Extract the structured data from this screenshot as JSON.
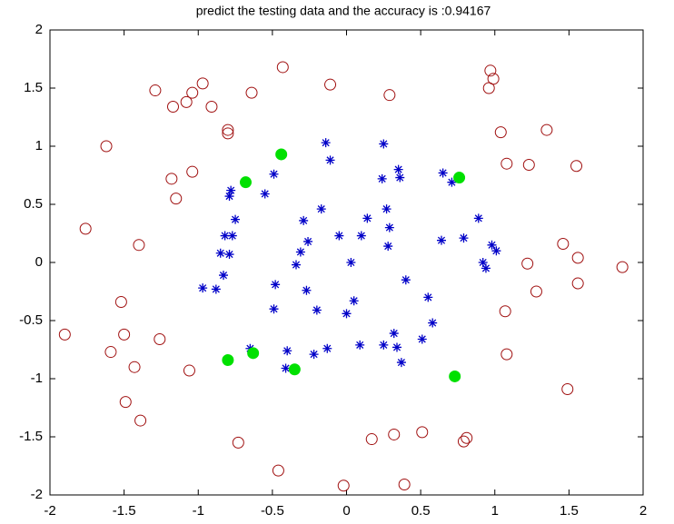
{
  "chart_data": {
    "type": "scatter",
    "title": "predict the testing data and the accuracy is :0.94167",
    "xlim": [
      -2,
      2
    ],
    "ylim": [
      -2,
      2
    ],
    "xticks": [
      -2,
      -1.5,
      -1,
      -0.5,
      0,
      0.5,
      1,
      1.5,
      2
    ],
    "yticks": [
      -2,
      -1.5,
      -1,
      -0.5,
      0,
      0.5,
      1,
      1.5,
      2
    ],
    "grid": false,
    "series": [
      {
        "color": "#a01010",
        "marker": "circle",
        "x": [
          -0.43,
          -1.29,
          -1.17,
          -1.08,
          -1.04,
          -0.97,
          -0.91,
          -0.8,
          -0.8,
          -0.64,
          -0.11,
          0.29,
          0.97,
          0.99,
          0.96,
          -1.62,
          -1.18,
          -1.15,
          -1.04,
          1.04,
          1.35,
          1.08,
          1.23,
          1.55,
          -1.76,
          -1.4,
          1.46,
          1.56,
          1.86,
          1.22,
          1.28,
          1.56,
          -1.52,
          -1.5,
          -1.9,
          -1.59,
          -1.26,
          -1.43,
          -1.06,
          1.07,
          1.08,
          1.49,
          -1.49,
          -1.39,
          -0.73,
          -0.46,
          -0.02,
          0.17,
          0.32,
          0.39,
          0.51,
          0.81,
          0.79
        ],
        "y": [
          1.68,
          1.48,
          1.34,
          1.38,
          1.46,
          1.54,
          1.34,
          1.14,
          1.11,
          1.46,
          1.53,
          1.44,
          1.65,
          1.58,
          1.5,
          1.0,
          0.72,
          0.55,
          0.78,
          1.12,
          1.14,
          0.85,
          0.84,
          0.83,
          0.29,
          0.15,
          0.16,
          0.04,
          -0.04,
          -0.01,
          -0.25,
          -0.18,
          -0.34,
          -0.62,
          -0.62,
          -0.77,
          -0.66,
          -0.9,
          -0.93,
          -0.42,
          -0.79,
          -1.09,
          -1.2,
          -1.36,
          -1.55,
          -1.79,
          -1.92,
          -1.52,
          -1.48,
          -1.91,
          -1.46,
          -1.51,
          -1.54
        ]
      },
      {
        "color": "#0000c8",
        "marker": "star",
        "x": [
          -0.14,
          -0.11,
          0.25,
          -0.49,
          -0.55,
          -0.78,
          -0.79,
          -0.75,
          -0.82,
          -0.77,
          -0.85,
          -0.79,
          -0.83,
          -0.97,
          -0.88,
          -0.17,
          -0.29,
          -0.26,
          -0.31,
          -0.05,
          0.1,
          0.14,
          0.27,
          0.29,
          0.28,
          0.24,
          0.35,
          0.36,
          0.03,
          -0.34,
          -0.48,
          -0.27,
          -0.2,
          -0.49,
          0.0,
          0.05,
          0.4,
          0.55,
          0.58,
          0.51,
          0.32,
          0.34,
          0.37,
          0.25,
          0.09,
          -0.13,
          -0.22,
          -0.4,
          -0.41,
          -0.65,
          0.65,
          0.71,
          0.89,
          0.79,
          0.64,
          0.98,
          1.01,
          0.92,
          0.94
        ],
        "y": [
          1.03,
          0.88,
          1.02,
          0.76,
          0.59,
          0.62,
          0.57,
          0.37,
          0.23,
          0.23,
          0.08,
          0.07,
          -0.11,
          -0.22,
          -0.23,
          0.46,
          0.36,
          0.18,
          0.09,
          0.23,
          0.23,
          0.38,
          0.46,
          0.3,
          0.14,
          0.72,
          0.8,
          0.73,
          0.0,
          -0.02,
          -0.19,
          -0.24,
          -0.41,
          -0.4,
          -0.44,
          -0.33,
          -0.15,
          -0.3,
          -0.52,
          -0.66,
          -0.61,
          -0.73,
          -0.86,
          -0.71,
          -0.71,
          -0.74,
          -0.79,
          -0.76,
          -0.91,
          -0.74,
          0.77,
          0.69,
          0.38,
          0.21,
          0.19,
          0.15,
          0.1,
          0.0,
          -0.05
        ]
      },
      {
        "color": "#00e000",
        "marker": "dot",
        "x": [
          -0.44,
          -0.68,
          0.76,
          -0.8,
          -0.63,
          -0.35,
          0.73
        ],
        "y": [
          0.93,
          0.69,
          0.73,
          -0.84,
          -0.78,
          -0.92,
          -0.98
        ]
      }
    ]
  }
}
